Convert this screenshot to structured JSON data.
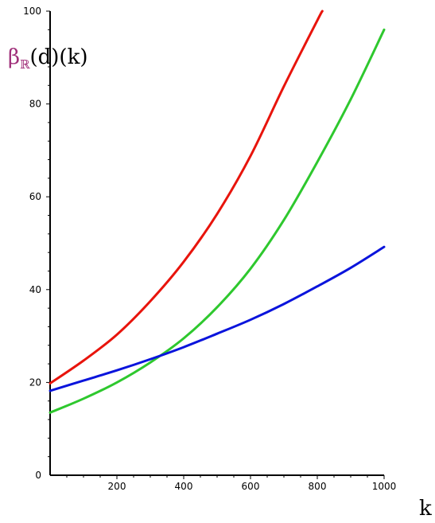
{
  "chart_data": {
    "type": "line",
    "xlabel": "k",
    "ylabel_parts": {
      "symbol": "β",
      "subscript": "ℝ",
      "rest": "(d)(k)"
    },
    "xlim": [
      0,
      1000
    ],
    "ylim": [
      0,
      100
    ],
    "x_ticks": [
      200,
      400,
      600,
      800,
      1000
    ],
    "y_ticks": [
      0,
      20,
      40,
      60,
      80,
      100
    ],
    "x_tick_labels": [
      "200",
      "400",
      "600",
      "800",
      "1000"
    ],
    "y_tick_labels": [
      "0",
      "20",
      "40",
      "60",
      "80",
      "100"
    ],
    "grid": false,
    "legend": "none",
    "series": [
      {
        "color": "#e8140c",
        "x": [
          0,
          100,
          200,
          300,
          400,
          500,
          600,
          700,
          800,
          815
        ],
        "y": [
          19.8,
          24.7,
          30.3,
          37.5,
          46.0,
          56.3,
          68.8,
          83.8,
          98.0,
          100
        ]
      },
      {
        "color": "#2ec82e",
        "x": [
          0,
          100,
          200,
          300,
          400,
          500,
          600,
          700,
          800,
          900,
          1000
        ],
        "y": [
          13.5,
          16.5,
          20.0,
          24.3,
          29.5,
          36.2,
          44.5,
          55.0,
          67.5,
          81.0,
          96.0
        ]
      },
      {
        "color": "#0a14dc",
        "x": [
          0,
          100,
          200,
          300,
          400,
          500,
          600,
          700,
          800,
          900,
          1000
        ],
        "y": [
          18.2,
          20.4,
          22.6,
          25.0,
          27.6,
          30.5,
          33.5,
          36.9,
          40.7,
          44.7,
          49.2
        ]
      }
    ]
  }
}
